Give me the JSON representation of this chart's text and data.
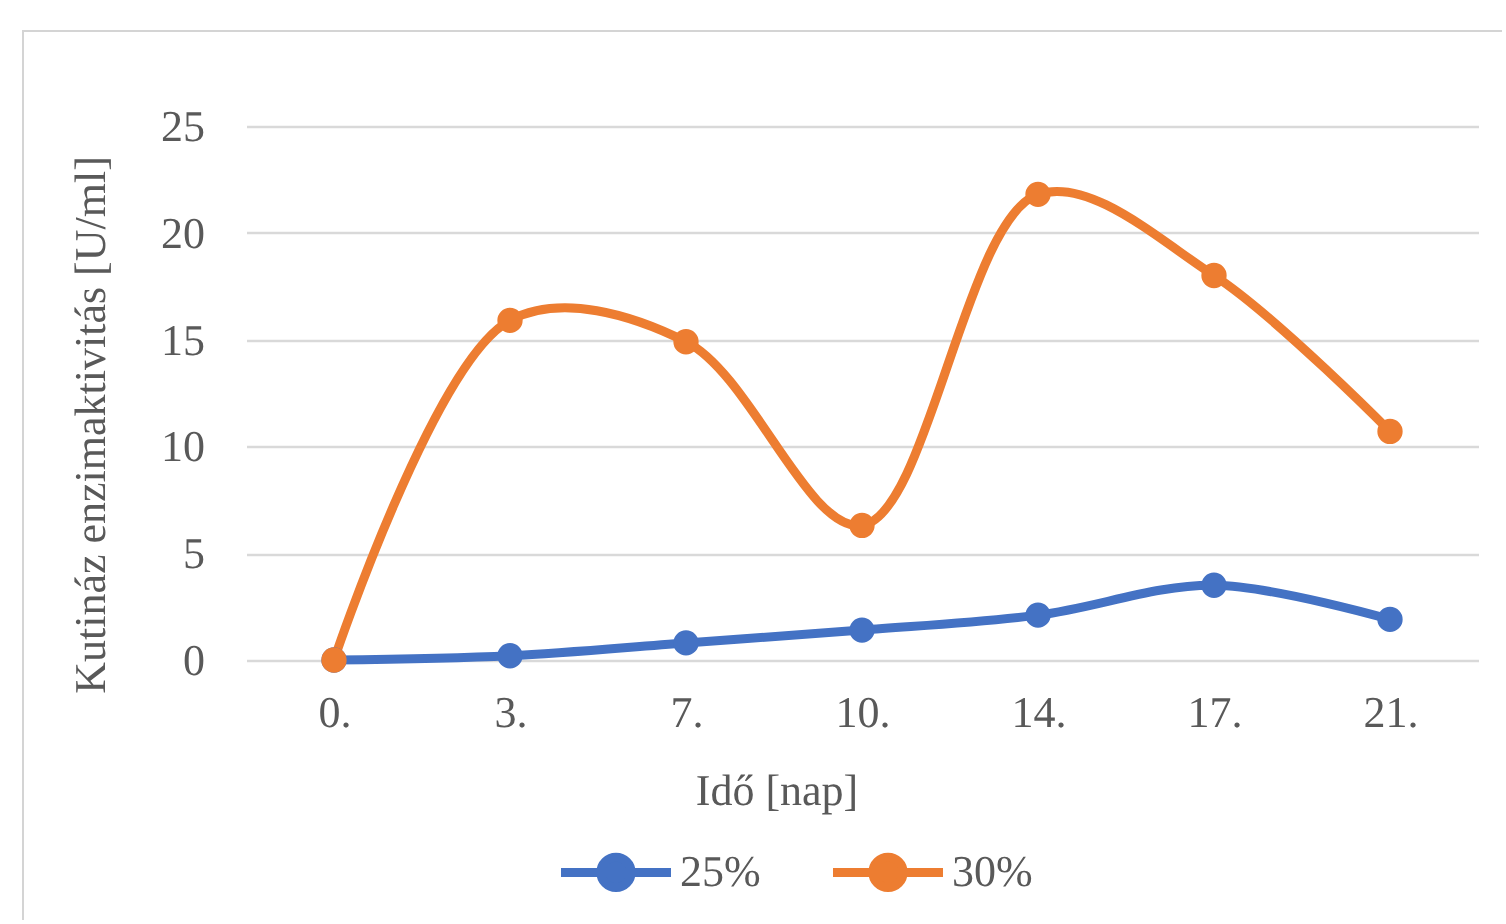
{
  "chart_data": {
    "type": "line",
    "xlabel": "Idő [nap]",
    "ylabel": "Kutináz enzimaktivitás [U/ml]",
    "categories": [
      "0.",
      "3.",
      "7.",
      "10.",
      "14.",
      "17.",
      "21."
    ],
    "series": [
      {
        "name": "25%",
        "color": "#4472c4",
        "values": [
          0,
          0.2,
          0.8,
          1.4,
          2.1,
          3.5,
          1.9
        ]
      },
      {
        "name": "30%",
        "color": "#ed7d31",
        "values": [
          0,
          15.9,
          14.9,
          6.3,
          21.8,
          18.0,
          10.7
        ]
      }
    ],
    "ylim": [
      0,
      25
    ],
    "yticks": [
      0,
      5,
      10,
      15,
      20,
      25
    ],
    "grid": "y",
    "legend": "bottom",
    "marker": "circle",
    "line_style": "solid"
  }
}
